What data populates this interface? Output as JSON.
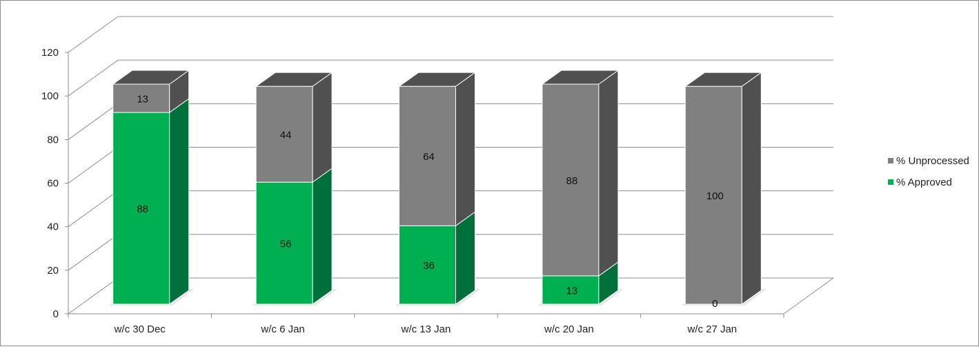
{
  "chart_data": {
    "type": "bar",
    "stacked": true,
    "three_d": true,
    "title": "",
    "xlabel": "",
    "ylabel": "",
    "ylim": [
      0,
      120
    ],
    "yticks": [
      "0",
      "20",
      "40",
      "60",
      "80",
      "100",
      "120"
    ],
    "grid": true,
    "legend_position": "right",
    "categories": [
      "w/c 30 Dec",
      "w/c 6 Jan",
      "w/c 13 Jan",
      "w/c 20 Jan",
      "w/c 27 Jan"
    ],
    "series": [
      {
        "name": "% Approved",
        "color": "#00b050",
        "side_color": "#00703a",
        "values": [
          88,
          56,
          36,
          13,
          0
        ],
        "labels": [
          "88",
          "56",
          "36",
          "13",
          "0"
        ]
      },
      {
        "name": "% Unprocessed",
        "color": "#808080",
        "side_color": "#505050",
        "values": [
          13,
          44,
          64,
          88,
          100
        ],
        "labels": [
          "13",
          "44",
          "64",
          "88",
          "100"
        ]
      }
    ]
  }
}
